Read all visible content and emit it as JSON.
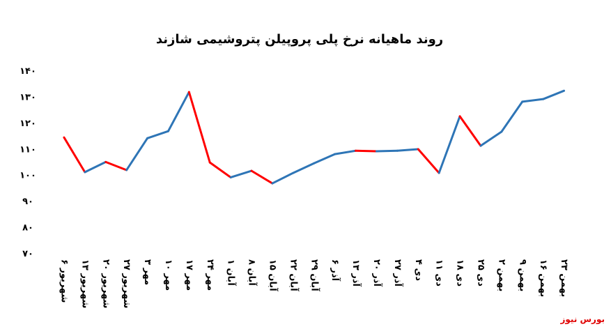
{
  "chart_data": {
    "type": "line",
    "title": "روند ماهیانه نرخ پلی پروپیلن پتروشیمی شازند",
    "categories": [
      "۶ شهریور",
      "۱۳ شهریور",
      "۲۰ شهریور",
      "۲۷ شهریور",
      "۳ مهر",
      "۱۰ مهر",
      "۱۷ مهر",
      "۲۴ مهر",
      "۱ آبان",
      "۸ آبان",
      "۱۵ آبان",
      "۲۲ آبان",
      "۲۹ آبان",
      "۶ آذر",
      "۱۳ آذر",
      "۲۰ آذر",
      "۲۷ آذر",
      "۴ دی",
      "۱۱ دی",
      "۱۸ دی",
      "۲۵ دی",
      "۲ بهمن",
      "۹ بهمن",
      "۱۶ بهمن",
      "۲۳ بهمن"
    ],
    "values": [
      114.3,
      101,
      104.9,
      101.8,
      114,
      116.7,
      131.7,
      104.7,
      99,
      101.5,
      96.7,
      100.7,
      104.4,
      107.9,
      109.2,
      109,
      109.2,
      109.8,
      100.7,
      122.4,
      111.1,
      116.5,
      128,
      129,
      132.2
    ],
    "up_color": "#2e75b6",
    "down_color": "#ff0000",
    "ylim": [
      70,
      140
    ],
    "yticks": [
      {
        "value": 70,
        "label": "۷۰"
      },
      {
        "value": 80,
        "label": "۸۰"
      },
      {
        "value": 90,
        "label": "۹۰"
      },
      {
        "value": 100,
        "label": "۱۰۰"
      },
      {
        "value": 110,
        "label": "۱۱۰"
      },
      {
        "value": 120,
        "label": "۱۲۰"
      },
      {
        "value": 130,
        "label": "۱۳۰"
      },
      {
        "value": 140,
        "label": "۱۴۰"
      }
    ],
    "grid": false,
    "source": "بورس نیوز"
  }
}
